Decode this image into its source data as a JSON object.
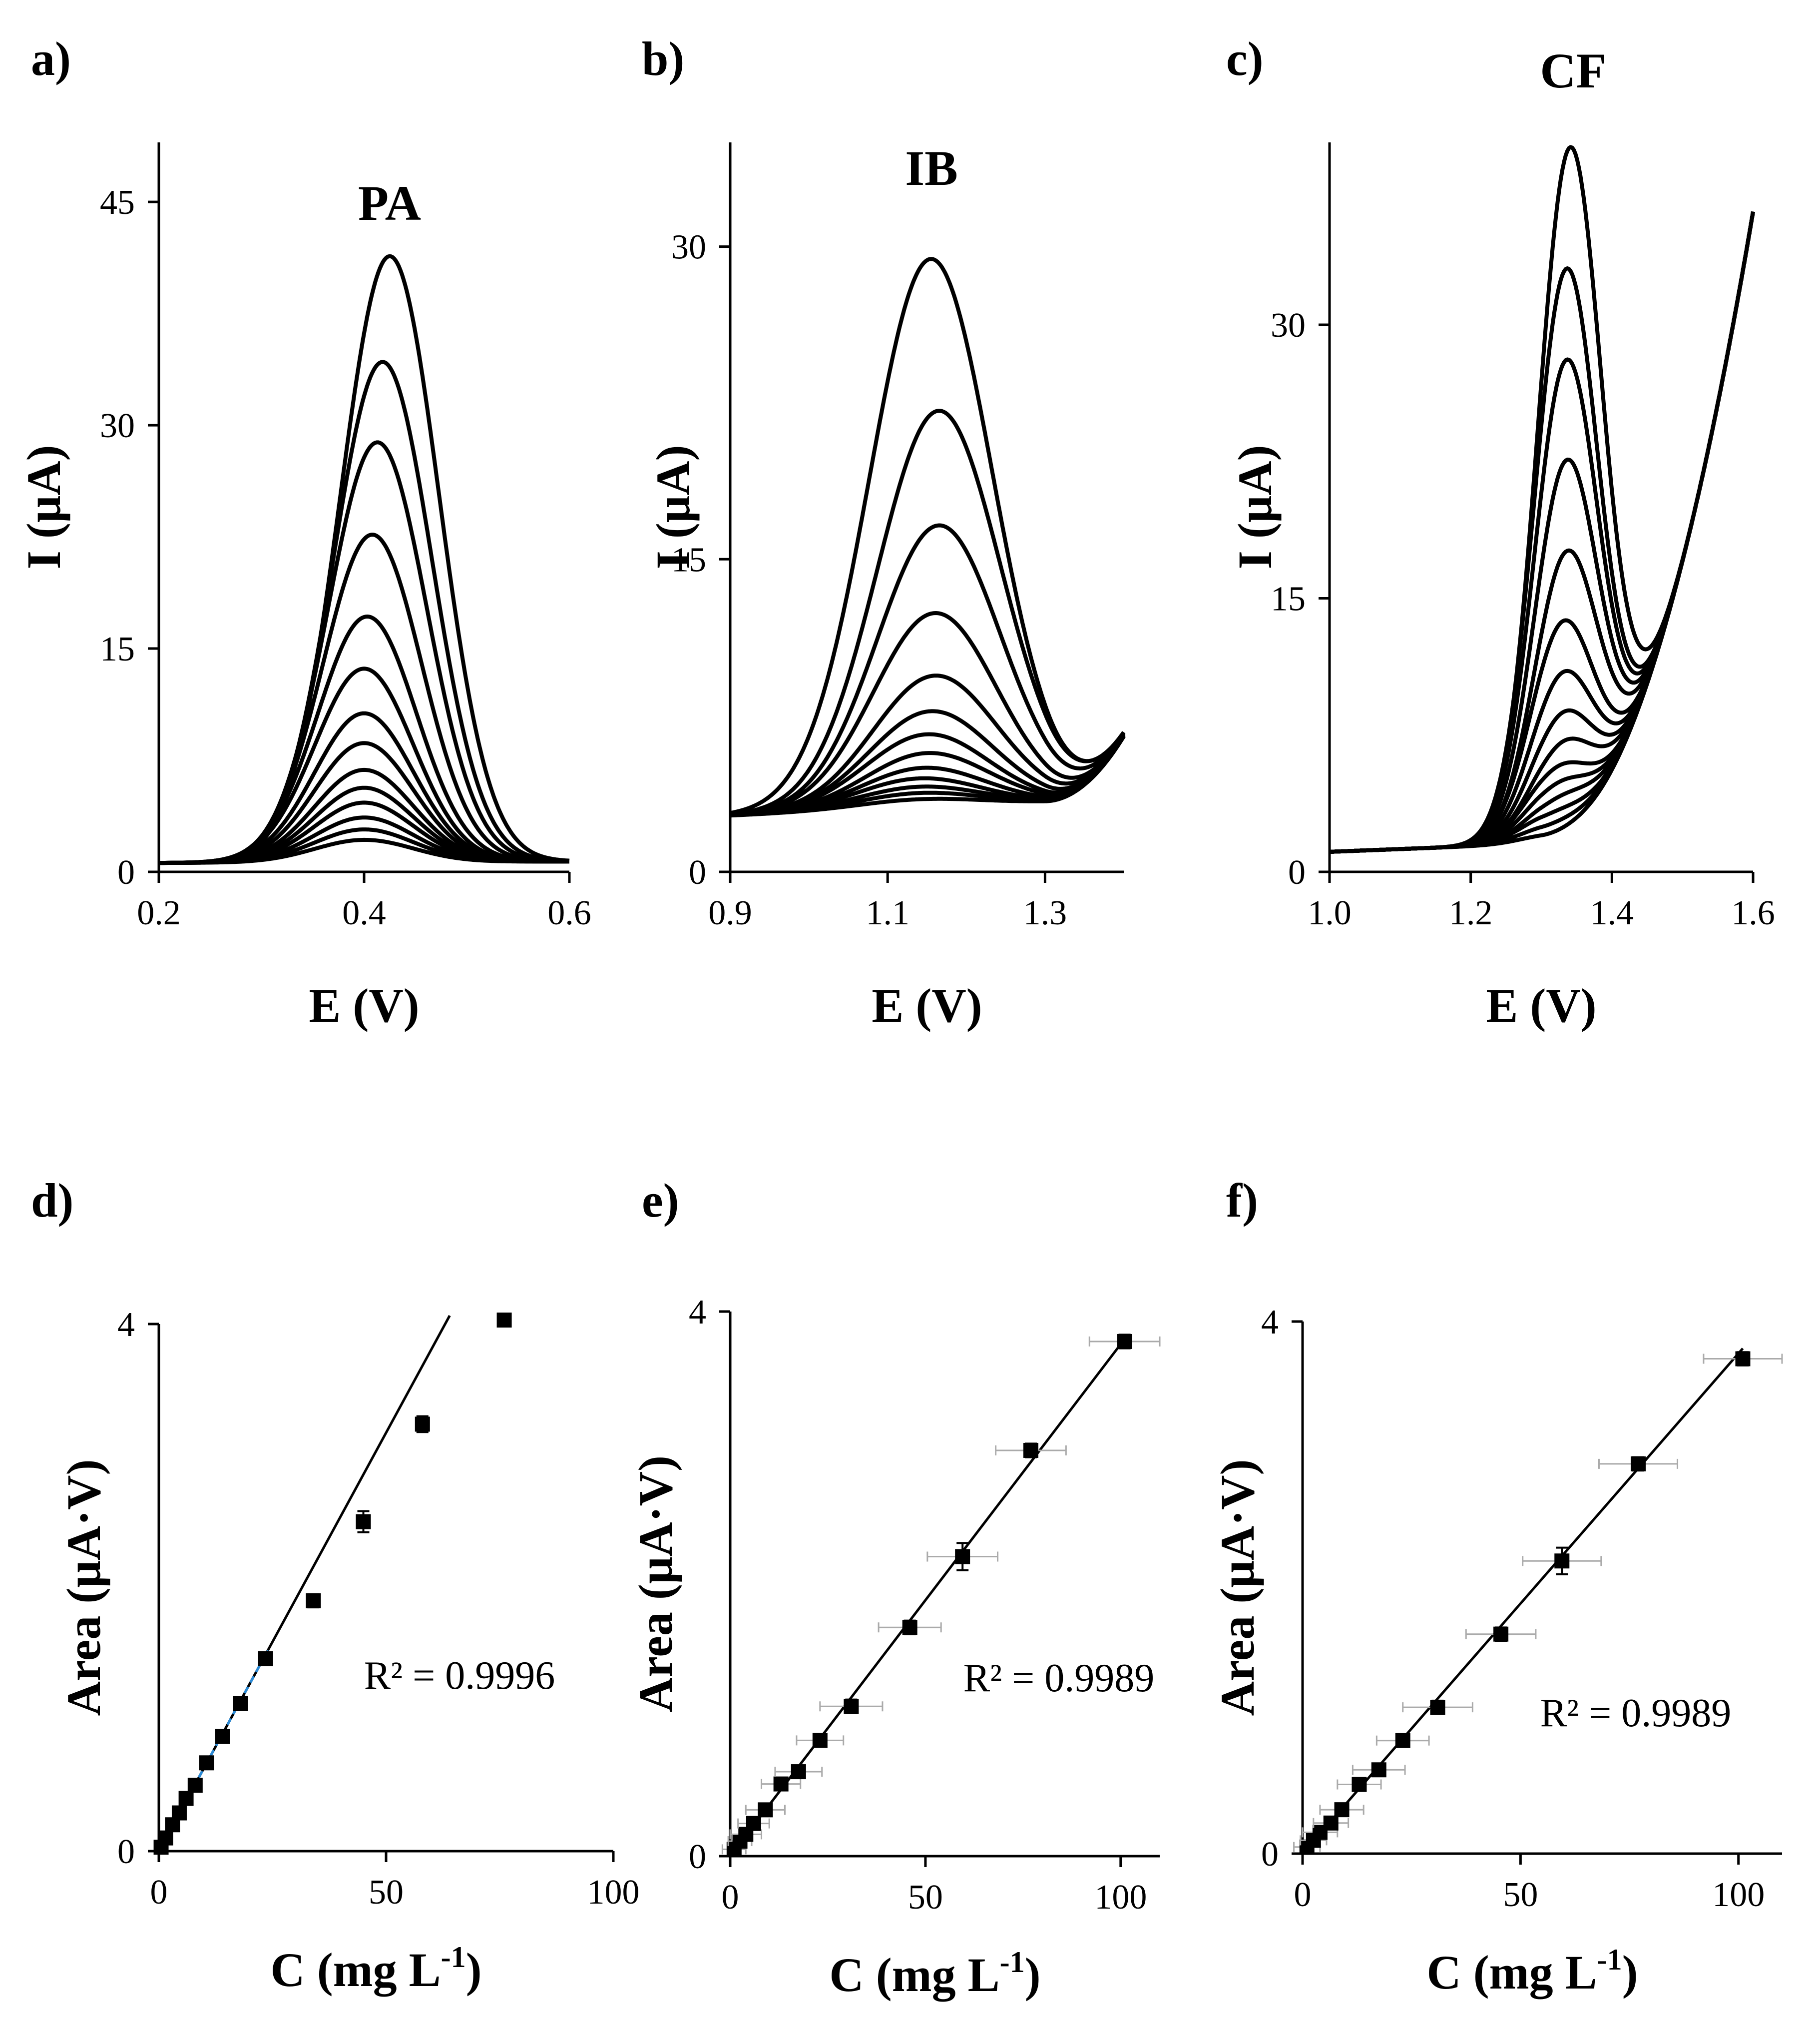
{
  "figure": {
    "panels": [
      {
        "label": "a)",
        "title": "PA"
      },
      {
        "label": "b)",
        "title": "IB"
      },
      {
        "label": "c)",
        "title": "CF"
      },
      {
        "label": "d)",
        "title": ""
      },
      {
        "label": "e)",
        "title": ""
      },
      {
        "label": "f)",
        "title": ""
      }
    ]
  },
  "chart_data": [
    {
      "panel": "a)",
      "type": "line",
      "title": "PA",
      "xlabel": "E (V)",
      "ylabel": "I (μA)",
      "xlim": [
        0.2,
        0.6
      ],
      "ylim": [
        0,
        49
      ],
      "xticks": [
        "0.2",
        "0.4",
        "0.6"
      ],
      "yticks": [
        "0",
        "15",
        "30",
        "45"
      ],
      "curve_model": {
        "baseline_start": 0.6,
        "baseline_end": 0.7,
        "peak_width": 0.048,
        "tail_start": 0,
        "tail_k": 1
      },
      "series": [
        {
          "peak_E": 0.4,
          "peak_I": 1.5
        },
        {
          "peak_E": 0.4,
          "peak_I": 2.2
        },
        {
          "peak_E": 0.4,
          "peak_I": 3.0
        },
        {
          "peak_E": 0.4,
          "peak_I": 4.0
        },
        {
          "peak_E": 0.4,
          "peak_I": 5.0
        },
        {
          "peak_E": 0.4,
          "peak_I": 6.2
        },
        {
          "peak_E": 0.4,
          "peak_I": 8.0
        },
        {
          "peak_E": 0.4,
          "peak_I": 10.0
        },
        {
          "peak_E": 0.4,
          "peak_I": 13.0
        },
        {
          "peak_E": 0.403,
          "peak_I": 16.5
        },
        {
          "peak_E": 0.408,
          "peak_I": 22.0
        },
        {
          "peak_E": 0.413,
          "peak_I": 28.2
        },
        {
          "peak_E": 0.418,
          "peak_I": 33.6
        },
        {
          "peak_E": 0.425,
          "peak_I": 40.7
        }
      ]
    },
    {
      "panel": "b)",
      "type": "line",
      "title": "IB",
      "xlabel": "E (V)",
      "ylabel": "I (μA)",
      "xlim": [
        0.9,
        1.4
      ],
      "ylim": [
        0,
        35
      ],
      "xticks": [
        "0.9",
        "1.1",
        "1.3"
      ],
      "yticks": [
        "0",
        "15",
        "30"
      ],
      "curve_model": {
        "baseline_start": 2.7,
        "baseline_end": 3.5,
        "peak_width": 0.078,
        "tail_start": 1.3,
        "tail_k": 300
      },
      "series": [
        {
          "peak_E": 1.14,
          "peak_I": 0.4
        },
        {
          "peak_E": 1.14,
          "peak_I": 0.7
        },
        {
          "peak_E": 1.14,
          "peak_I": 1.0
        },
        {
          "peak_E": 1.14,
          "peak_I": 1.4
        },
        {
          "peak_E": 1.145,
          "peak_I": 1.9
        },
        {
          "peak_E": 1.15,
          "peak_I": 2.6
        },
        {
          "peak_E": 1.15,
          "peak_I": 3.5
        },
        {
          "peak_E": 1.155,
          "peak_I": 4.6
        },
        {
          "peak_E": 1.16,
          "peak_I": 6.3
        },
        {
          "peak_E": 1.16,
          "peak_I": 9.3
        },
        {
          "peak_E": 1.165,
          "peak_I": 13.5
        },
        {
          "peak_E": 1.165,
          "peak_I": 19.0
        },
        {
          "peak_E": 1.155,
          "peak_I": 26.3
        }
      ]
    },
    {
      "panel": "c)",
      "type": "line",
      "title": "CF",
      "xlabel": "E (V)",
      "ylabel": "I (μA)",
      "xlim": [
        1.0,
        1.6
      ],
      "ylim": [
        0,
        40
      ],
      "xticks": [
        "1.0",
        "1.2",
        "1.4",
        "1.6"
      ],
      "yticks": [
        "0",
        "15",
        "30"
      ],
      "curve_model": {
        "baseline_start": 1.1,
        "baseline_end": 2.0,
        "peak_width": 0.045,
        "tail_start": 1.3,
        "tail_k": 380
      },
      "series": [
        {
          "peak_E": 1.32,
          "peak_I": 0.5
        },
        {
          "peak_E": 1.32,
          "peak_I": 1.0
        },
        {
          "peak_E": 1.32,
          "peak_I": 1.6
        },
        {
          "peak_E": 1.325,
          "peak_I": 2.3
        },
        {
          "peak_E": 1.325,
          "peak_I": 3.1
        },
        {
          "peak_E": 1.325,
          "peak_I": 4.0
        },
        {
          "peak_E": 1.33,
          "peak_I": 5.2
        },
        {
          "peak_E": 1.33,
          "peak_I": 6.8
        },
        {
          "peak_E": 1.33,
          "peak_I": 9.0
        },
        {
          "peak_E": 1.33,
          "peak_I": 11.8
        },
        {
          "peak_E": 1.335,
          "peak_I": 15.5
        },
        {
          "peak_E": 1.335,
          "peak_I": 20.5
        },
        {
          "peak_E": 1.335,
          "peak_I": 26.0
        },
        {
          "peak_E": 1.335,
          "peak_I": 31.0
        },
        {
          "peak_E": 1.34,
          "peak_I": 37.5
        }
      ]
    },
    {
      "panel": "d)",
      "type": "scatter",
      "title": "",
      "xlabel": "C (mg L",
      "xlabel_sup": "-1",
      "xlabel_end": ")",
      "ylabel": "Area (μA·V)",
      "xlim": [
        0,
        100
      ],
      "ylim": [
        0,
        4
      ],
      "xticks": [
        "0",
        "50",
        "100"
      ],
      "yticks": [
        "0",
        "4"
      ],
      "annotation": "R² = 0.9996",
      "fit": {
        "slope": 0.0635,
        "intercept": 0.0,
        "x_range": [
          0,
          64
        ]
      },
      "fit_dashed": {
        "x_range": [
          0,
          24
        ]
      },
      "points": [
        {
          "x": 0.5,
          "y": 0.03,
          "yerr": 0.02,
          "xerr": 0
        },
        {
          "x": 1.5,
          "y": 0.1,
          "yerr": 0.02,
          "xerr": 0
        },
        {
          "x": 3,
          "y": 0.2,
          "yerr": 0.02,
          "xerr": 0
        },
        {
          "x": 4.5,
          "y": 0.29,
          "yerr": 0.02,
          "xerr": 0
        },
        {
          "x": 6,
          "y": 0.4,
          "yerr": 0.03,
          "xerr": 0
        },
        {
          "x": 8,
          "y": 0.5,
          "yerr": 0.03,
          "xerr": 0
        },
        {
          "x": 10.5,
          "y": 0.67,
          "yerr": 0.03,
          "xerr": 0
        },
        {
          "x": 14,
          "y": 0.87,
          "yerr": 0.03,
          "xerr": 0
        },
        {
          "x": 18,
          "y": 1.12,
          "yerr": 0.04,
          "xerr": 0
        },
        {
          "x": 23.5,
          "y": 1.46,
          "yerr": 0.04,
          "xerr": 0
        },
        {
          "x": 34,
          "y": 1.9,
          "yerr": 0.05,
          "xerr": 0
        },
        {
          "x": 45,
          "y": 2.5,
          "yerr": 0.08,
          "xerr": 0
        },
        {
          "x": 58,
          "y": 3.24,
          "yerr": 0.06,
          "xerr": 0
        },
        {
          "x": 76,
          "y": 4.03,
          "yerr": 0.03,
          "xerr": 0
        }
      ]
    },
    {
      "panel": "e)",
      "type": "scatter",
      "title": "",
      "xlabel": "C (mg L",
      "xlabel_sup": "-1",
      "xlabel_end": ")",
      "ylabel": "Area (μA·V)",
      "xlim": [
        0,
        110
      ],
      "ylim": [
        0,
        4
      ],
      "xticks": [
        "0",
        "50",
        "100"
      ],
      "yticks": [
        "0",
        "4"
      ],
      "annotation": "R² = 0.9989",
      "fit": {
        "slope": 0.0376,
        "intercept": 0.0,
        "x_range": [
          0,
          101
        ]
      },
      "points": [
        {
          "x": 1,
          "y": 0.05,
          "yerr": 0.02,
          "xerr": 3
        },
        {
          "x": 2.5,
          "y": 0.11,
          "yerr": 0.02,
          "xerr": 3
        },
        {
          "x": 4,
          "y": 0.16,
          "yerr": 0.02,
          "xerr": 4
        },
        {
          "x": 6,
          "y": 0.24,
          "yerr": 0.03,
          "xerr": 4
        },
        {
          "x": 9,
          "y": 0.34,
          "yerr": 0.03,
          "xerr": 5
        },
        {
          "x": 13,
          "y": 0.53,
          "yerr": 0.03,
          "xerr": 5
        },
        {
          "x": 17.5,
          "y": 0.62,
          "yerr": 0.04,
          "xerr": 6
        },
        {
          "x": 23,
          "y": 0.85,
          "yerr": 0.04,
          "xerr": 6
        },
        {
          "x": 31,
          "y": 1.1,
          "yerr": 0.05,
          "xerr": 8
        },
        {
          "x": 46,
          "y": 1.68,
          "yerr": 0.05,
          "xerr": 8
        },
        {
          "x": 59.5,
          "y": 2.2,
          "yerr": 0.1,
          "xerr": 9
        },
        {
          "x": 77,
          "y": 2.98,
          "yerr": 0.05,
          "xerr": 9
        },
        {
          "x": 101,
          "y": 3.78,
          "yerr": 0.05,
          "xerr": 9
        }
      ]
    },
    {
      "panel": "f)",
      "type": "scatter",
      "title": "",
      "xlabel": "C (mg L",
      "xlabel_sup": "-1",
      "xlabel_end": ")",
      "ylabel": "Area (μA·V)",
      "xlim": [
        0,
        110
      ],
      "ylim": [
        0,
        4
      ],
      "xticks": [
        "0",
        "50",
        "100"
      ],
      "yticks": [
        "0",
        "4"
      ],
      "annotation": "R² = 0.9989",
      "fit": {
        "slope": 0.0376,
        "intercept": 0.0,
        "x_range": [
          0,
          101
        ]
      },
      "points": [
        {
          "x": 1,
          "y": 0.05,
          "yerr": 0.02,
          "xerr": 3
        },
        {
          "x": 2.5,
          "y": 0.1,
          "yerr": 0.02,
          "xerr": 3
        },
        {
          "x": 4,
          "y": 0.16,
          "yerr": 0.02,
          "xerr": 4
        },
        {
          "x": 6.5,
          "y": 0.23,
          "yerr": 0.03,
          "xerr": 4
        },
        {
          "x": 9,
          "y": 0.33,
          "yerr": 0.03,
          "xerr": 5
        },
        {
          "x": 13,
          "y": 0.52,
          "yerr": 0.03,
          "xerr": 5
        },
        {
          "x": 17.5,
          "y": 0.63,
          "yerr": 0.04,
          "xerr": 6
        },
        {
          "x": 23,
          "y": 0.85,
          "yerr": 0.04,
          "xerr": 6
        },
        {
          "x": 31,
          "y": 1.1,
          "yerr": 0.05,
          "xerr": 8
        },
        {
          "x": 45.5,
          "y": 1.65,
          "yerr": 0.05,
          "xerr": 8
        },
        {
          "x": 59.5,
          "y": 2.2,
          "yerr": 0.1,
          "xerr": 9
        },
        {
          "x": 77,
          "y": 2.93,
          "yerr": 0.05,
          "xerr": 9
        },
        {
          "x": 101,
          "y": 3.72,
          "yerr": 0.05,
          "xerr": 9
        }
      ]
    }
  ]
}
